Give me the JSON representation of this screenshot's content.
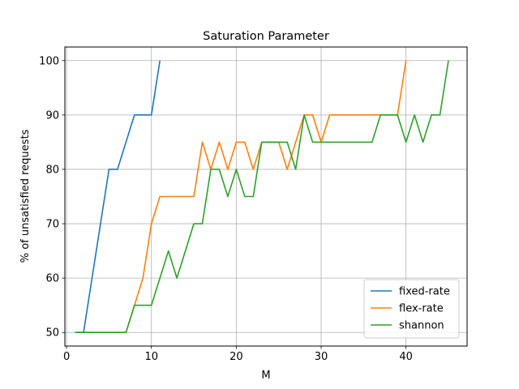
{
  "chart_data": {
    "type": "line",
    "title": "Saturation Parameter",
    "xlabel": "M",
    "ylabel": "% of unsatisfied requests",
    "xlim": [
      -0.2,
      47.2
    ],
    "ylim": [
      47.5,
      102.5
    ],
    "xticks": [
      0,
      10,
      20,
      30,
      40
    ],
    "yticks": [
      50,
      60,
      70,
      80,
      90,
      100
    ],
    "grid": true,
    "legend_position": "lower-right",
    "series": [
      {
        "name": "fixed-rate",
        "color": "#1f77b4",
        "x": [
          1,
          2,
          3,
          4,
          5,
          6,
          7,
          8,
          9,
          10,
          11
        ],
        "y": [
          50,
          50,
          60,
          70,
          80,
          80,
          85,
          90,
          90,
          90,
          100
        ]
      },
      {
        "name": "flex-rate",
        "color": "#ff7f0e",
        "x": [
          1,
          2,
          3,
          4,
          5,
          6,
          7,
          8,
          9,
          10,
          11,
          12,
          13,
          14,
          15,
          16,
          17,
          18,
          19,
          20,
          21,
          22,
          23,
          24,
          25,
          26,
          27,
          28,
          29,
          30,
          31,
          32,
          33,
          34,
          35,
          36,
          37,
          38,
          39,
          40
        ],
        "y": [
          50,
          50,
          50,
          50,
          50,
          50,
          50,
          55,
          60,
          70,
          75,
          75,
          75,
          75,
          75,
          85,
          80,
          85,
          80,
          85,
          85,
          80,
          85,
          85,
          85,
          80,
          85,
          90,
          90,
          85,
          90,
          90,
          90,
          90,
          90,
          90,
          90,
          90,
          90,
          100
        ]
      },
      {
        "name": "shannon",
        "color": "#2ca02c",
        "x": [
          1,
          2,
          3,
          4,
          5,
          6,
          7,
          8,
          9,
          10,
          11,
          12,
          13,
          14,
          15,
          16,
          17,
          18,
          19,
          20,
          21,
          22,
          23,
          24,
          25,
          26,
          27,
          28,
          29,
          30,
          31,
          32,
          33,
          34,
          35,
          36,
          37,
          38,
          39,
          40,
          41,
          42,
          43,
          44,
          45
        ],
        "y": [
          50,
          50,
          50,
          50,
          50,
          50,
          50,
          55,
          55,
          55,
          60,
          65,
          60,
          65,
          70,
          70,
          80,
          80,
          75,
          80,
          75,
          75,
          85,
          85,
          85,
          85,
          80,
          90,
          85,
          85,
          85,
          85,
          85,
          85,
          85,
          85,
          90,
          90,
          90,
          85,
          90,
          85,
          90,
          90,
          100
        ]
      }
    ]
  }
}
